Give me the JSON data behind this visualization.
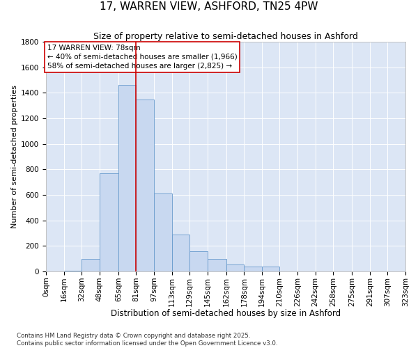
{
  "title": "17, WARREN VIEW, ASHFORD, TN25 4PW",
  "subtitle": "Size of property relative to semi-detached houses in Ashford",
  "xlabel": "Distribution of semi-detached houses by size in Ashford",
  "ylabel": "Number of semi-detached properties",
  "property_label": "17 WARREN VIEW: 78sqm",
  "pct_smaller": 40,
  "pct_larger": 58,
  "n_smaller": 1966,
  "n_larger": 2825,
  "bin_labels": [
    "0sqm",
    "16sqm",
    "32sqm",
    "48sqm",
    "65sqm",
    "81sqm",
    "97sqm",
    "113sqm",
    "129sqm",
    "145sqm",
    "162sqm",
    "178sqm",
    "194sqm",
    "210sqm",
    "226sqm",
    "242sqm",
    "258sqm",
    "275sqm",
    "291sqm",
    "307sqm",
    "323sqm"
  ],
  "bin_edges": [
    0,
    16,
    32,
    48,
    65,
    81,
    97,
    113,
    129,
    145,
    162,
    178,
    194,
    210,
    226,
    242,
    258,
    275,
    291,
    307,
    323
  ],
  "bar_heights": [
    0,
    5,
    100,
    770,
    1460,
    1350,
    610,
    290,
    160,
    100,
    55,
    40,
    40,
    0,
    0,
    0,
    0,
    0,
    0,
    0
  ],
  "bar_color": "#c8d8f0",
  "bar_edge_color": "#6699cc",
  "vline_x": 81,
  "vline_color": "#cc0000",
  "ylim_max": 1800,
  "yticks": [
    0,
    200,
    400,
    600,
    800,
    1000,
    1200,
    1400,
    1600,
    1800
  ],
  "annotation_box_color": "#cc0000",
  "bg_color": "#dce6f5",
  "footer": "Contains HM Land Registry data © Crown copyright and database right 2025.\nContains public sector information licensed under the Open Government Licence v3.0.",
  "title_fontsize": 11,
  "subtitle_fontsize": 9,
  "xlabel_fontsize": 8.5,
  "ylabel_fontsize": 8,
  "tick_fontsize": 7.5,
  "annotation_fontsize": 7.5
}
